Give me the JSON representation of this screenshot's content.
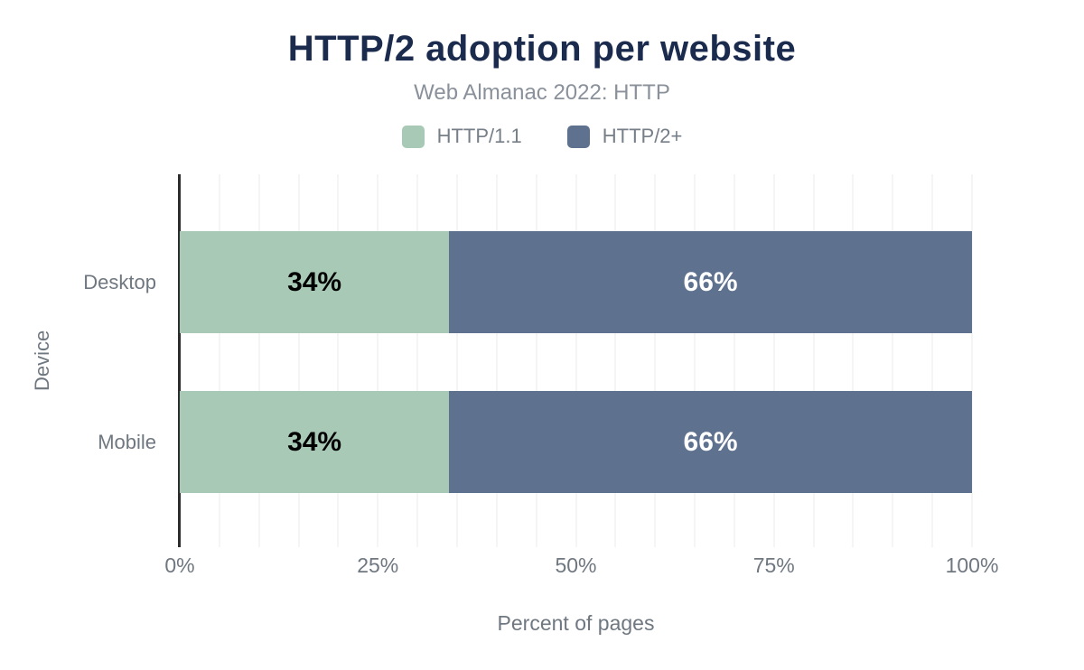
{
  "chart_data": {
    "type": "bar",
    "orientation": "horizontal",
    "stacked": true,
    "title": "HTTP/2 adoption per website",
    "subtitle": "Web Almanac 2022: HTTP",
    "categories": [
      "Desktop",
      "Mobile"
    ],
    "series": [
      {
        "name": "HTTP/1.1",
        "color": "#A7C9B6",
        "label_color": "#000000",
        "values": [
          34,
          34
        ],
        "value_labels": [
          "34%",
          "34%"
        ]
      },
      {
        "name": "HTTP/2+",
        "color": "#5E718F",
        "label_color": "#FFFFFF",
        "values": [
          66,
          66
        ],
        "value_labels": [
          "66%",
          "66%"
        ]
      }
    ],
    "xlabel": "Percent of pages",
    "ylabel": "Device",
    "xlim": [
      0,
      100
    ],
    "xticks": [
      {
        "value": 0,
        "label": "0%"
      },
      {
        "value": 25,
        "label": "25%"
      },
      {
        "value": 50,
        "label": "50%"
      },
      {
        "value": 75,
        "label": "75%"
      },
      {
        "value": 100,
        "label": "100%"
      }
    ],
    "grid": {
      "minor_step_percent": 5,
      "color": "#F5F5F5"
    },
    "legend_position": "top",
    "colors": {
      "background": "#FFFFFF",
      "title_text": "#1B2B4E",
      "subtitle_text": "#8A919B",
      "legend_text": "#767E88",
      "axis_text": "#6F7780",
      "axis_line": "#2D2D2D"
    }
  }
}
